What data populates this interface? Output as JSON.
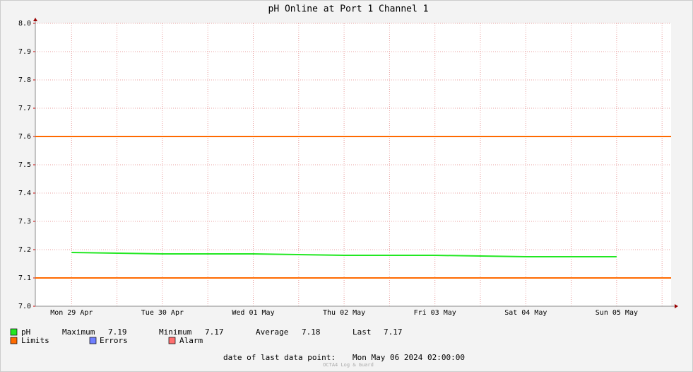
{
  "chart_data": {
    "type": "line",
    "title": "pH Online at Port 1 Channel 1",
    "categories": [
      "Mon 29 Apr",
      "Tue 30 Apr",
      "Wed 01 May",
      "Thu 02 May",
      "Fri 03 May",
      "Sat 04 May",
      "Sun 05 May"
    ],
    "series": [
      {
        "name": "pH",
        "color": "#22e822",
        "values": [
          7.19,
          7.185,
          7.185,
          7.18,
          7.18,
          7.175,
          7.175
        ]
      }
    ],
    "limits": {
      "name": "Limits",
      "color": "#ff6a00",
      "values": [
        7.6,
        7.1
      ]
    },
    "extra_legend": [
      {
        "name": "Errors",
        "color": "#6f7fff"
      },
      {
        "name": "Alarm",
        "color": "#ff6f6f"
      }
    ],
    "ylim": [
      7.0,
      8.0
    ],
    "yticks": [
      {
        "value": 7.0,
        "label": "7.0"
      },
      7.1,
      7.2,
      7.3,
      7.4,
      7.5,
      7.6,
      7.7,
      7.8,
      7.9,
      {
        "value": 8.0,
        "label": "8.0"
      }
    ],
    "grid": true,
    "stats": [
      {
        "label": "Maximum",
        "value": 7.19
      },
      {
        "label": "Minimum",
        "value": 7.17
      },
      {
        "label": "Average",
        "value": 7.18
      },
      {
        "label": "Last",
        "value": 7.17
      }
    ],
    "footer": {
      "label": "date of last data point:",
      "value": "Mon May 06 2024 02:00:00"
    },
    "watermark": "OCTA4 Log & Guard"
  }
}
